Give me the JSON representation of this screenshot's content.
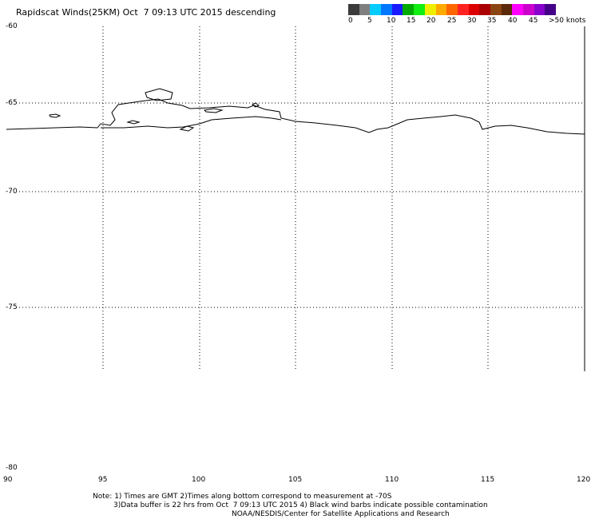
{
  "title": "Rapidscat Winds(25KM) Oct  7 09:13 UTC 2015 descending",
  "wind_scale": {
    "colors": [
      "#3b3b3b",
      "#7f7f7f",
      "#00ccff",
      "#0077ff",
      "#1a1aff",
      "#00aa00",
      "#11ee11",
      "#eeee00",
      "#ffaa00",
      "#ff6600",
      "#ff2222",
      "#dd0000",
      "#aa0000",
      "#8b4513",
      "#5c2a0a",
      "#ff00ff",
      "#cc00cc",
      "#8800cc",
      "#440088"
    ],
    "labels": [
      "0",
      "5",
      "10",
      "15",
      "20",
      "25",
      "30",
      "35",
      "40",
      "45",
      ">50 knots"
    ],
    "units": "knots"
  },
  "lat_labels": [
    "-60",
    "-65",
    "-70",
    "-75",
    "-80"
  ],
  "lon_labels": [
    "90",
    "95",
    "100",
    "105",
    "110",
    "115",
    "120"
  ],
  "notes": {
    "line1": "Note: 1) Times are GMT 2)Times along bottom correspond to measurement at -70S",
    "line2": "3)Data buffer is 22 hrs from Oct  7 09:13 UTC 2015 4) Black wind barbs indicate possible contamination",
    "line3": "NOAA/NESDIS/Center for Satellite Applications and Research"
  }
}
